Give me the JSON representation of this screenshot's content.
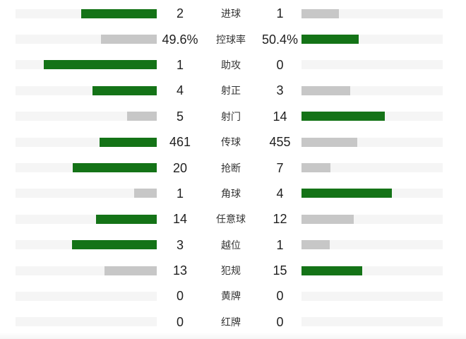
{
  "chart_data": {
    "type": "bar",
    "subtype": "paired-horizontal-stat-comparison",
    "orientation": "horizontal",
    "legend": "none",
    "grid": false,
    "categories": [
      "进球",
      "控球率",
      "助攻",
      "射正",
      "射门",
      "传球",
      "抢断",
      "角球",
      "任意球",
      "越位",
      "犯规",
      "黄牌",
      "红牌"
    ],
    "series": [
      {
        "name": "left-team",
        "display": [
          "2",
          "49.6%",
          "1",
          "4",
          "5",
          "461",
          "20",
          "1",
          "14",
          "3",
          "13",
          "0",
          "0"
        ],
        "values": [
          2,
          49.6,
          1,
          4,
          5,
          461,
          20,
          1,
          14,
          3,
          13,
          0,
          0
        ]
      },
      {
        "name": "right-team",
        "display": [
          "1",
          "50.4%",
          "0",
          "3",
          "14",
          "455",
          "7",
          "4",
          "12",
          "1",
          "15",
          "0",
          "0"
        ],
        "values": [
          1,
          50.4,
          0,
          3,
          14,
          455,
          7,
          4,
          12,
          1,
          15,
          0,
          0
        ]
      }
    ],
    "bar_rule": "bar length proportional to value / (left value + right value); larger value colored green, smaller gray; zero values show no bar",
    "colors": {
      "leading_bar": "#147317",
      "trailing_bar": "#c7c7c7",
      "bar_track": "#f5f5f5",
      "value_text": "#1f1f1f",
      "label_text": "#333333",
      "background": "#ffffff"
    }
  }
}
